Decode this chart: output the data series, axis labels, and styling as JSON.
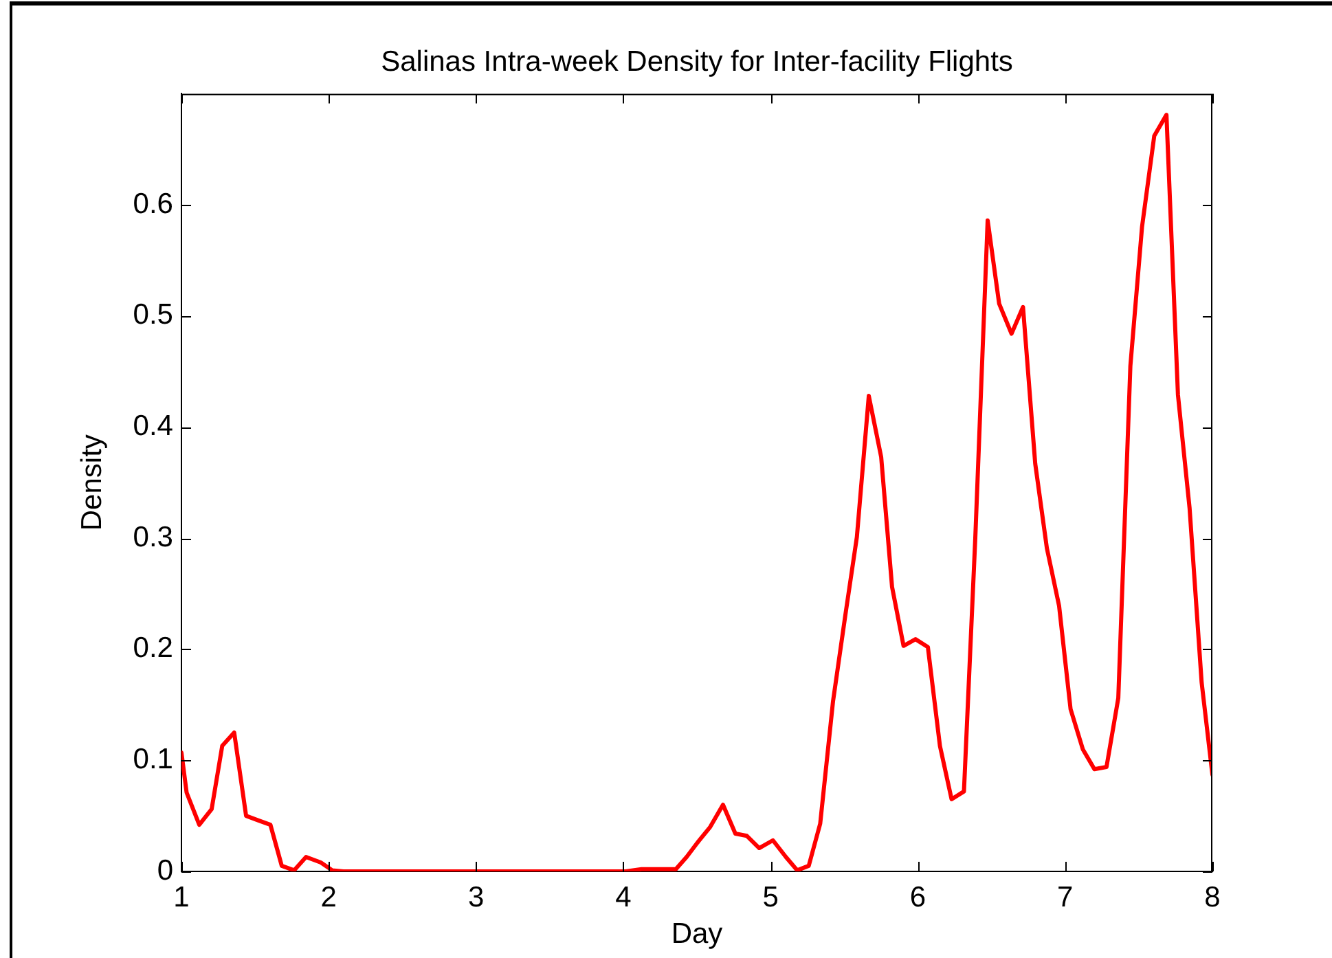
{
  "chart_data": {
    "type": "line",
    "title": "Salinas Intra-week Density for Inter-facility Flights",
    "xlabel": "Day",
    "ylabel": "Density",
    "x": [
      1.0,
      1.035,
      1.121,
      1.205,
      1.277,
      1.358,
      1.439,
      1.52,
      1.604,
      1.681,
      1.765,
      1.846,
      1.946,
      2.024,
      2.1,
      2.5,
      3.0,
      3.5,
      4.015,
      4.124,
      4.357,
      4.43,
      4.51,
      4.59,
      4.677,
      4.761,
      4.839,
      4.923,
      5.016,
      5.104,
      5.181,
      5.259,
      5.337,
      5.424,
      5.508,
      5.586,
      5.667,
      5.751,
      5.825,
      5.903,
      5.984,
      6.068,
      6.15,
      6.229,
      6.313,
      6.39,
      6.474,
      6.552,
      6.636,
      6.714,
      6.797,
      6.876,
      6.959,
      7.037,
      7.12,
      7.199,
      7.281,
      7.361,
      7.443,
      7.522,
      7.605,
      7.688,
      7.766,
      7.845,
      7.927,
      8.0
    ],
    "series": [
      {
        "color": "#ff0000",
        "values": [
          0.107,
          0.071,
          0.042,
          0.056,
          0.113,
          0.125,
          0.05,
          0.046,
          0.042,
          0.005,
          0.001,
          0.013,
          0.008,
          0.001,
          0,
          0,
          0,
          0,
          0,
          0.002,
          0.002,
          0.013,
          0.027,
          0.04,
          0.06,
          0.034,
          0.032,
          0.021,
          0.028,
          0.013,
          0.001,
          0.005,
          0.043,
          0.153,
          0.231,
          0.301,
          0.428,
          0.373,
          0.256,
          0.203,
          0.209,
          0.202,
          0.113,
          0.065,
          0.072,
          0.3,
          0.586,
          0.511,
          0.484,
          0.508,
          0.367,
          0.291,
          0.239,
          0.146,
          0.11,
          0.092,
          0.094,
          0.156,
          0.455,
          0.58,
          0.662,
          0.681,
          0.429,
          0.327,
          0.17,
          0.087
        ]
      }
    ],
    "xlim": [
      1,
      8
    ],
    "ylim": [
      0,
      0.7
    ],
    "xticks": [
      1,
      2,
      3,
      4,
      5,
      6,
      7,
      8
    ],
    "yticks": [
      0,
      0.1,
      0.2,
      0.3,
      0.4,
      0.5,
      0.6
    ]
  }
}
